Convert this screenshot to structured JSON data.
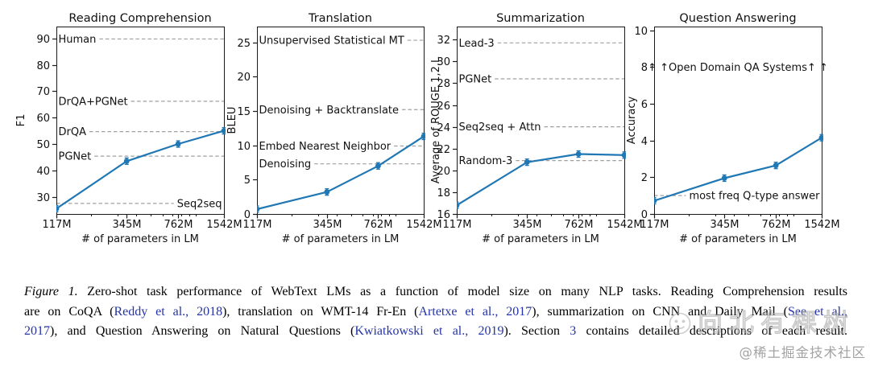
{
  "figure": {
    "label": "Figure 1.",
    "caption": {
      "lines": [
        {
          "segments": [
            {
              "text": "Figure 1.",
              "style": "figure_label"
            },
            {
              "text": " Zero-shot task performance of WebText LMs as a function of model size on many NLP tasks. Reading Comprehension results",
              "style": "text"
            }
          ]
        },
        {
          "segments": [
            {
              "text": "are on CoQA (",
              "style": "text"
            },
            {
              "text": "Reddy et al., 2018",
              "style": "citation"
            },
            {
              "text": "), translation on WMT-14 Fr-En (",
              "style": "text"
            },
            {
              "text": "Artetxe et al., 2017",
              "style": "citation"
            },
            {
              "text": "), summarization on CNN and Daily Mail (",
              "style": "text"
            },
            {
              "text": "See et al.,",
              "style": "citation"
            }
          ]
        },
        {
          "segments": [
            {
              "text": "2017",
              "style": "citation"
            },
            {
              "text": "), and Question Answering on Natural Questions (",
              "style": "text"
            },
            {
              "text": "Kwiatkowski et al., 2019",
              "style": "citation"
            },
            {
              "text": "). Section ",
              "style": "text"
            },
            {
              "text": "3",
              "style": "citation"
            },
            {
              "text": " contains detailed descriptions of each result.",
              "style": "text"
            }
          ]
        }
      ]
    }
  },
  "chart_data": [
    {
      "type": "line",
      "title": "Reading Comprehension",
      "xlabel": "# of parameters in LM",
      "ylabel": "F1",
      "x_scale": "log",
      "x_tick_labels": [
        "117M",
        "345M",
        "762M",
        "1542M"
      ],
      "x_values_millions": [
        117,
        345,
        762,
        1542
      ],
      "y_ticks": [
        30,
        40,
        50,
        60,
        70,
        80,
        90
      ],
      "ylim": [
        23.5,
        94.5
      ],
      "series": [
        {
          "name": "WebText LM",
          "values": [
            25.5,
            43.5,
            50.0,
            55.0
          ]
        }
      ],
      "reference_lines": [
        {
          "label": "Human",
          "value": 89.8,
          "label_side": "left"
        },
        {
          "label": "DrQA+PGNet",
          "value": 66.2,
          "label_side": "left"
        },
        {
          "label": "DrQA",
          "value": 54.7,
          "label_side": "left"
        },
        {
          "label": "PGNet",
          "value": 45.4,
          "label_side": "left"
        },
        {
          "label": "Seq2seq",
          "value": 27.5,
          "label_side": "right"
        }
      ],
      "annotations": []
    },
    {
      "type": "line",
      "title": "Translation",
      "xlabel": "# of parameters in LM",
      "ylabel": "BLEU",
      "x_scale": "log",
      "x_tick_labels": [
        "117M",
        "345M",
        "762M",
        "1542M"
      ],
      "x_values_millions": [
        117,
        345,
        762,
        1542
      ],
      "y_ticks": [
        0,
        5,
        10,
        15,
        20,
        25
      ],
      "ylim": [
        0,
        27.3
      ],
      "series": [
        {
          "name": "WebText LM",
          "values": [
            0.7,
            3.2,
            7.0,
            11.3
          ]
        }
      ],
      "reference_lines": [
        {
          "label": "Unsupervised Statistical MT",
          "value": 25.3,
          "label_side": "left"
        },
        {
          "label": "Denoising + Backtranslate",
          "value": 15.2,
          "label_side": "left"
        },
        {
          "label": "Embed Nearest Neighbor",
          "value": 9.9,
          "label_side": "left"
        },
        {
          "label": "Denoising",
          "value": 7.3,
          "label_side": "left"
        }
      ],
      "annotations": []
    },
    {
      "type": "line",
      "title": "Summarization",
      "xlabel": "# of parameters in LM",
      "ylabel": "Average of ROUGE 1,2,L",
      "x_scale": "log",
      "x_tick_labels": [
        "117M",
        "345M",
        "762M",
        "1542M"
      ],
      "x_values_millions": [
        117,
        345,
        762,
        1542
      ],
      "y_ticks": [
        16,
        18,
        20,
        22,
        24,
        26,
        28,
        30,
        32
      ],
      "ylim": [
        16,
        33.2
      ],
      "series": [
        {
          "name": "WebText LM",
          "values": [
            16.8,
            20.75,
            21.5,
            21.4
          ]
        }
      ],
      "reference_lines": [
        {
          "label": "Lead-3",
          "value": 31.7,
          "label_side": "left"
        },
        {
          "label": "PGNet",
          "value": 28.4,
          "label_side": "left"
        },
        {
          "label": "Seq2seq + Attn",
          "value": 24.0,
          "label_side": "left"
        },
        {
          "label": "Random-3",
          "value": 20.9,
          "label_side": "left"
        }
      ],
      "annotations": []
    },
    {
      "type": "line",
      "title": "Question Answering",
      "xlabel": "# of parameters in LM",
      "ylabel": "Accuracy",
      "x_scale": "log",
      "x_tick_labels": [
        "117M",
        "345M",
        "762M",
        "1542M"
      ],
      "x_values_millions": [
        117,
        345,
        762,
        1542
      ],
      "y_ticks": [
        0,
        2,
        4,
        6,
        8,
        10
      ],
      "ylim": [
        0,
        10.2
      ],
      "series": [
        {
          "name": "WebText LM",
          "values": [
            0.72,
            1.95,
            2.64,
            4.15
          ]
        }
      ],
      "reference_lines": [
        {
          "label": "most freq Q-type answer",
          "value": 1.0,
          "label_side": "right"
        }
      ],
      "annotations": [
        {
          "text": "↑ ↑Open Domain QA Systems↑ ↑",
          "value": 8.0
        }
      ]
    }
  ],
  "watermarks": {
    "ghost_text": "向北有棵树",
    "credit": "@稀土掘金技术社区"
  },
  "colors": {
    "series_line": "#1f77b4",
    "reference_line": "#a0a0a0",
    "axis": "#1a1a1a",
    "citation": "#2534a6",
    "watermark_credit": "#a3a3a3"
  }
}
